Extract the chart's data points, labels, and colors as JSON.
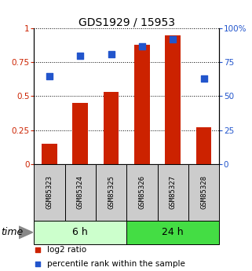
{
  "title": "GDS1929 / 15953",
  "categories": [
    "GSM85323",
    "GSM85324",
    "GSM85325",
    "GSM85326",
    "GSM85327",
    "GSM85328"
  ],
  "log2_ratio": [
    0.15,
    0.45,
    0.53,
    0.88,
    0.95,
    0.27
  ],
  "percentile_rank": [
    65,
    80,
    81,
    87,
    92,
    63
  ],
  "bar_color": "#cc2200",
  "dot_color": "#2255cc",
  "group_labels": [
    "6 h",
    "24 h"
  ],
  "group_ranges": [
    [
      0,
      3
    ],
    [
      3,
      6
    ]
  ],
  "group_colors_light": "#ccffcc",
  "group_colors_dark": "#44dd44",
  "ylim_left": [
    0,
    1.0
  ],
  "ylim_right": [
    0,
    100
  ],
  "yticks_left": [
    0,
    0.25,
    0.5,
    0.75,
    1.0
  ],
  "ytick_labels_left": [
    "0",
    "0.25",
    "0.5",
    "0.75",
    "1"
  ],
  "yticks_right": [
    0,
    25,
    50,
    75,
    100
  ],
  "ytick_labels_right": [
    "0",
    "25",
    "50",
    "75",
    "100%"
  ],
  "left_tick_color": "#cc2200",
  "right_tick_color": "#2255cc",
  "legend_items": [
    "log2 ratio",
    "percentile rank within the sample"
  ],
  "legend_colors": [
    "#cc2200",
    "#2255cc"
  ],
  "bar_width": 0.5,
  "dot_size": 30,
  "sample_box_color": "#cccccc",
  "title_fontsize": 10,
  "tick_fontsize": 7.5,
  "sample_fontsize": 6.5,
  "group_fontsize": 9,
  "legend_fontsize": 7.5,
  "time_fontsize": 9
}
